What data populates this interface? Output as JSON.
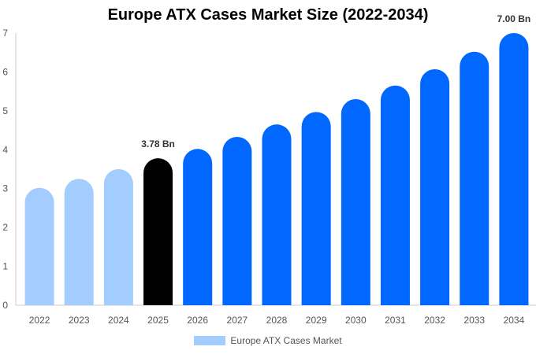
{
  "chart_data": {
    "type": "bar",
    "title": "Europe ATX Cases Market Size (2022-2034)",
    "xlabel": "",
    "ylabel": "",
    "ylim": [
      0,
      7
    ],
    "yticks": [
      "0",
      "1",
      "2",
      "3",
      "4",
      "5",
      "6",
      "7"
    ],
    "categories": [
      "2022",
      "2023",
      "2024",
      "2025",
      "2026",
      "2027",
      "2028",
      "2029",
      "2030",
      "2031",
      "2032",
      "2033",
      "2034"
    ],
    "values": [
      3.02,
      3.25,
      3.5,
      3.78,
      4.02,
      4.33,
      4.65,
      4.97,
      5.3,
      5.65,
      6.07,
      6.52,
      7.0
    ],
    "bar_colors": [
      "#a3cdff",
      "#a3cdff",
      "#a3cdff",
      "#000000",
      "#0067ff",
      "#0067ff",
      "#0067ff",
      "#0067ff",
      "#0067ff",
      "#0067ff",
      "#0067ff",
      "#0067ff",
      "#0067ff"
    ],
    "data_labels": [
      {
        "category": "2025",
        "text": "3.78 Bn"
      },
      {
        "category": "2034",
        "text": "7.00 Bn"
      }
    ],
    "legend": {
      "position": "bottom-center",
      "label": "Europe ATX Cases Market",
      "color": "#a3cdff"
    },
    "grid": false
  }
}
